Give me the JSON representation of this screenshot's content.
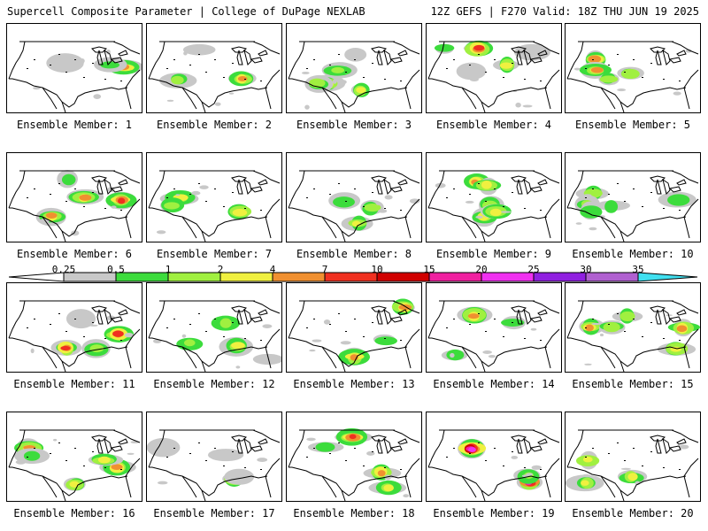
{
  "header": {
    "left": "Supercell Composite Parameter | College of DuPage NEXLAB",
    "right": "12Z GEFS | F270 Valid: 18Z THU JUN 19 2025"
  },
  "colorbar": {
    "levels": [
      "0.25",
      "0.5",
      "1",
      "2",
      "4",
      "7",
      "10",
      "15",
      "20",
      "25",
      "30",
      "35"
    ],
    "colors": [
      "#c8c8c8",
      "#3cdc3c",
      "#a0f040",
      "#f0f040",
      "#f09030",
      "#f03020",
      "#d00000",
      "#f020a0",
      "#f030f0",
      "#9020e0",
      "#b060d0",
      "#40e0f0"
    ]
  },
  "caption_prefix": "Ensemble Member: ",
  "members": [
    {
      "label": "Ensemble Member: 1",
      "max": 4
    },
    {
      "label": "Ensemble Member: 2",
      "max": 4
    },
    {
      "label": "Ensemble Member: 3",
      "max": 2
    },
    {
      "label": "Ensemble Member: 4",
      "max": 7
    },
    {
      "label": "Ensemble Member: 5",
      "max": 4
    },
    {
      "label": "Ensemble Member: 6",
      "max": 7
    },
    {
      "label": "Ensemble Member: 7",
      "max": 2
    },
    {
      "label": "Ensemble Member: 8",
      "max": 2
    },
    {
      "label": "Ensemble Member: 9",
      "max": 4
    },
    {
      "label": "Ensemble Member: 10",
      "max": 1
    },
    {
      "label": "Ensemble Member: 11",
      "max": 7
    },
    {
      "label": "Ensemble Member: 12",
      "max": 2
    },
    {
      "label": "Ensemble Member: 13",
      "max": 4
    },
    {
      "label": "Ensemble Member: 14",
      "max": 4
    },
    {
      "label": "Ensemble Member: 15",
      "max": 4
    },
    {
      "label": "Ensemble Member: 16",
      "max": 4
    },
    {
      "label": "Ensemble Member: 17",
      "max": 2
    },
    {
      "label": "Ensemble Member: 18",
      "max": 7
    },
    {
      "label": "Ensemble Member: 19",
      "max": 20
    },
    {
      "label": "Ensemble Member: 20",
      "max": 2
    }
  ]
}
